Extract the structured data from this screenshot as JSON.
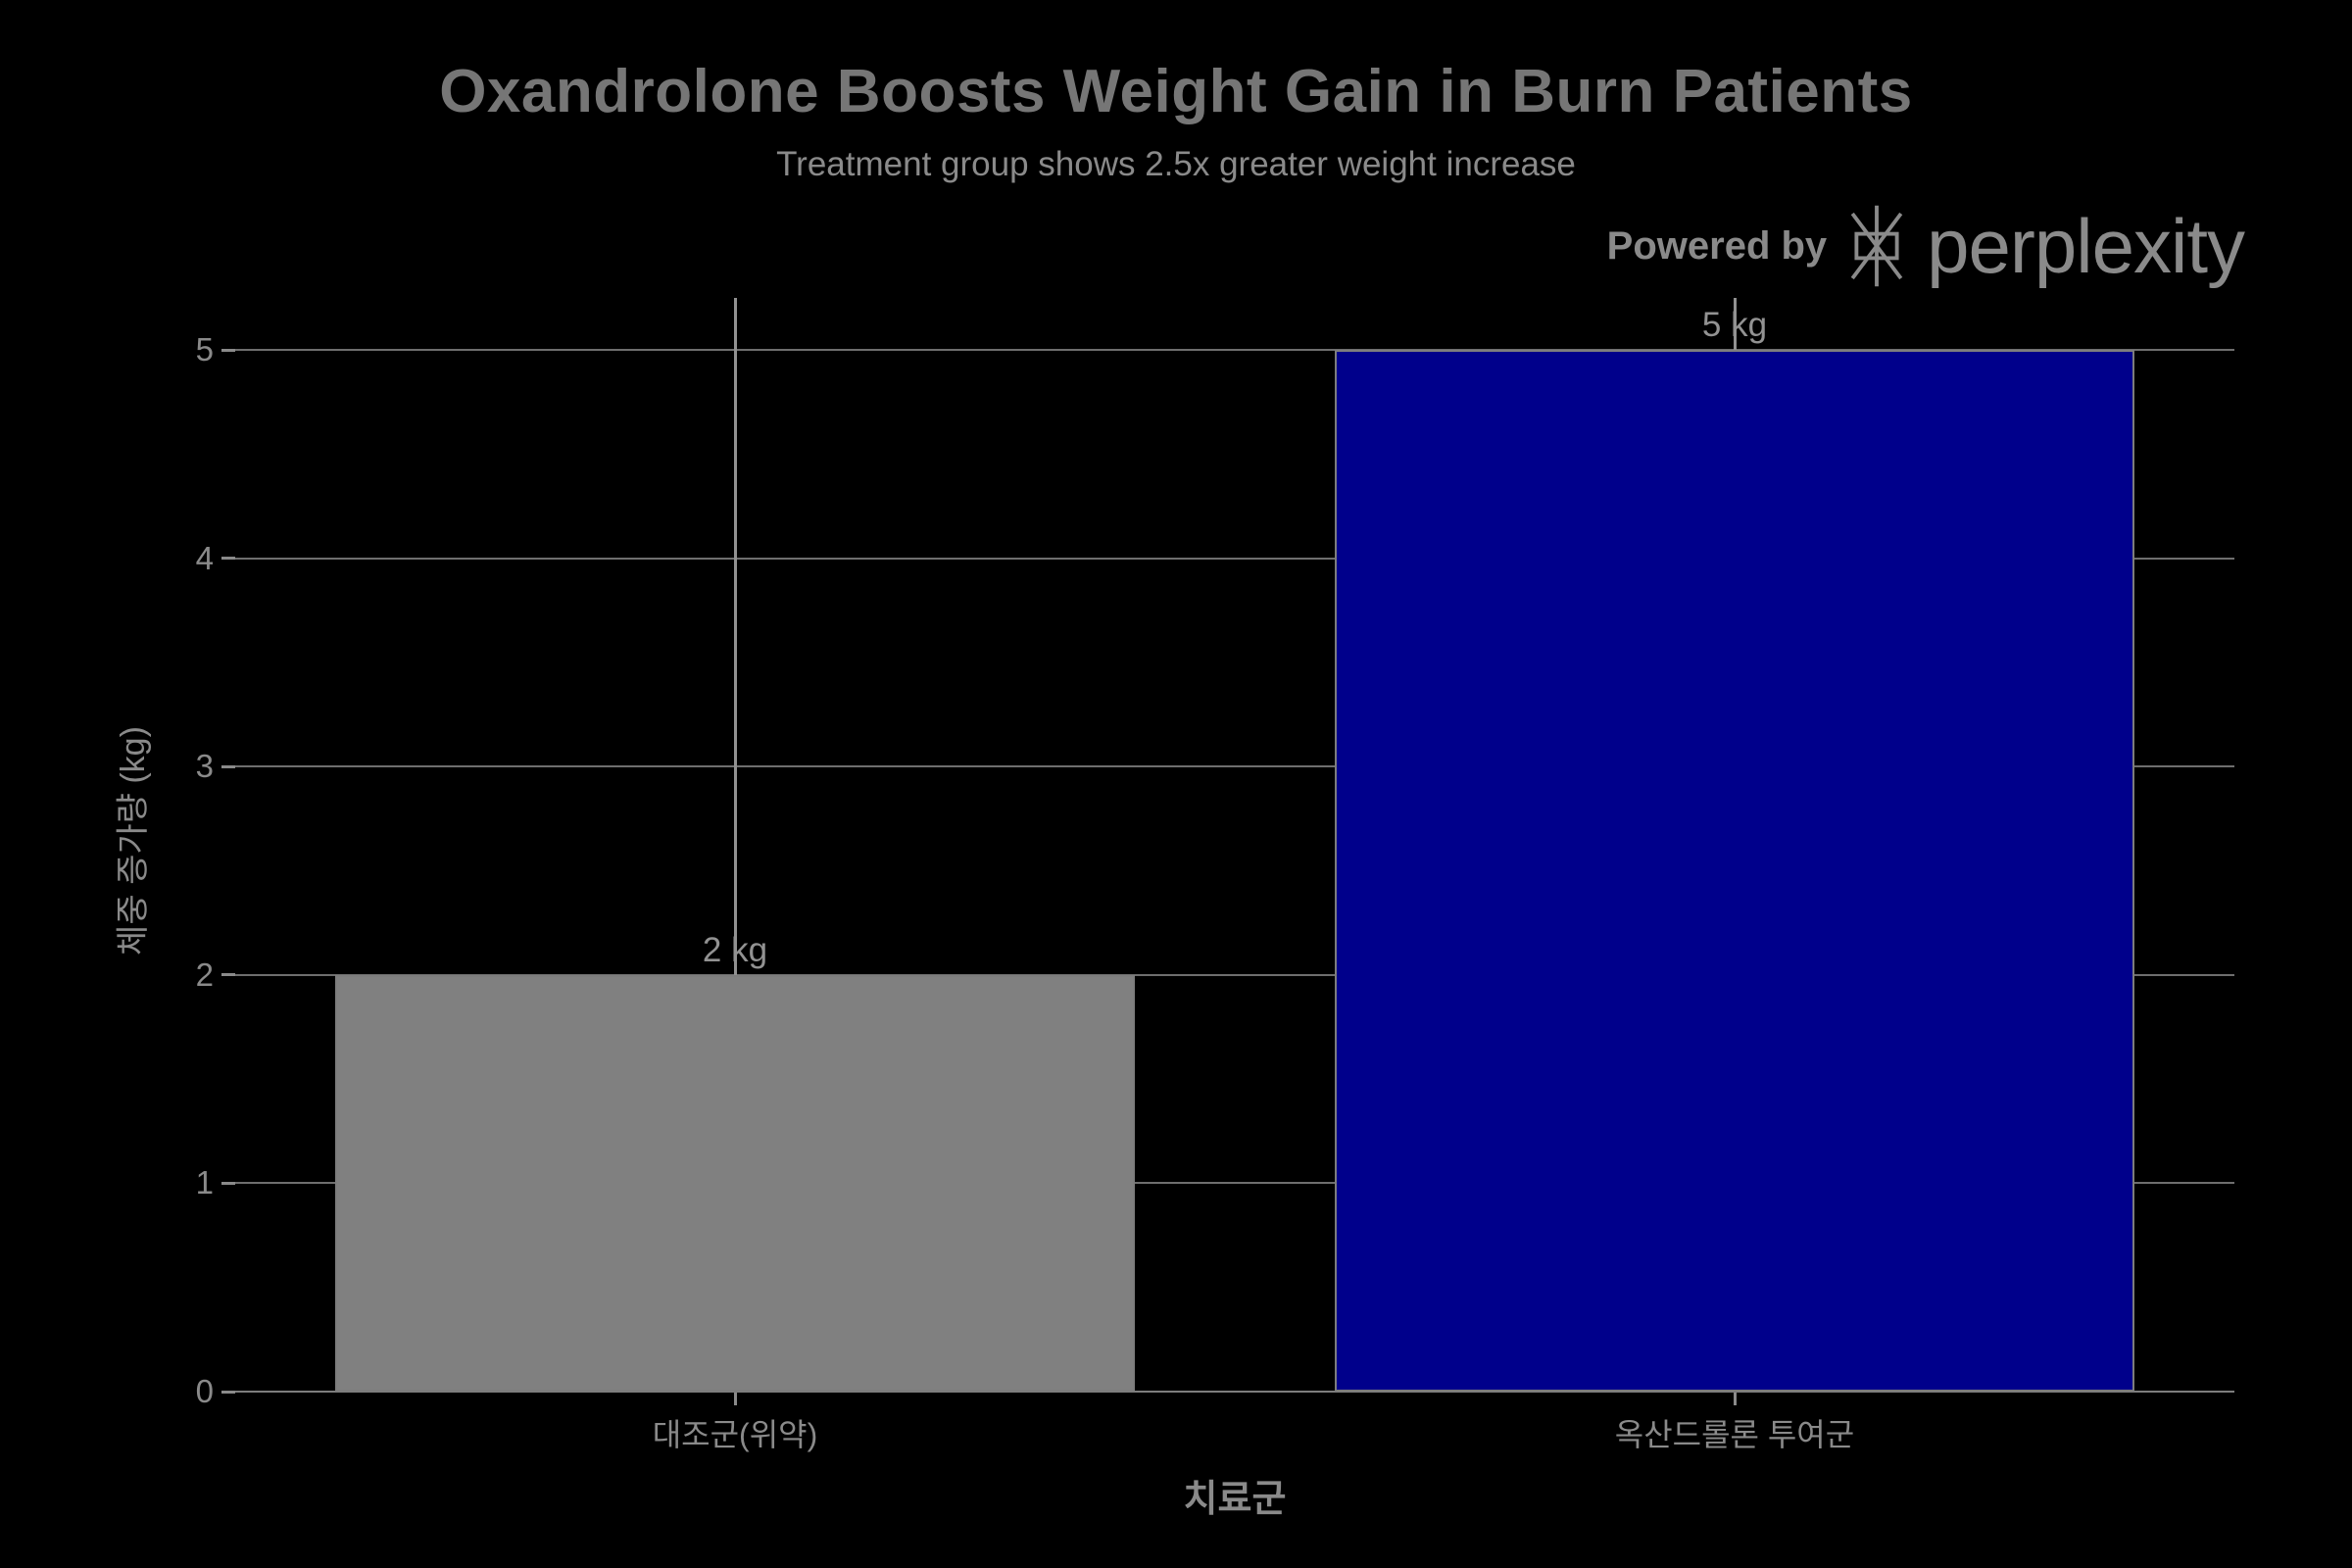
{
  "chart_data": {
    "type": "bar",
    "title": "Oxandrolone Boosts Weight Gain in Burn Patients",
    "subtitle": "Treatment group shows 2.5x greater weight increase",
    "categories": [
      "대조군(위약)",
      "옥산드롤론 투여군"
    ],
    "values": [
      2,
      5
    ],
    "bar_labels": [
      "2 kg",
      "5 kg"
    ],
    "bar_colors": [
      "#808080",
      "#00008B"
    ],
    "xlabel": "치료군",
    "ylabel": "체중 증가량 (kg)",
    "yticks": [
      0,
      1,
      2,
      3,
      4,
      5
    ],
    "ylim": [
      0,
      5.28
    ],
    "grid": true,
    "legend_position": "none",
    "annotation_lines": [
      {
        "category_index": 0,
        "from_value": 2,
        "to_value": 5.25
      },
      {
        "category_index": 1,
        "from_value": 5,
        "to_value": 5.25
      }
    ]
  },
  "branding": {
    "powered_by": "Powered by",
    "brand": "perplexity",
    "logo": "perplexity-logo"
  },
  "colors": {
    "background": "#000000",
    "title": "#767676",
    "subtitle": "#8a8a8a",
    "axis_text": "#8a8a8a",
    "gridline": "#6e6e6e",
    "axis_line": "#7d7d7d",
    "bar_border": "#7d7d7d",
    "bar_control": "#808080",
    "bar_treatment": "#00008B",
    "whisker": "#919191",
    "data_label": "#929292"
  }
}
